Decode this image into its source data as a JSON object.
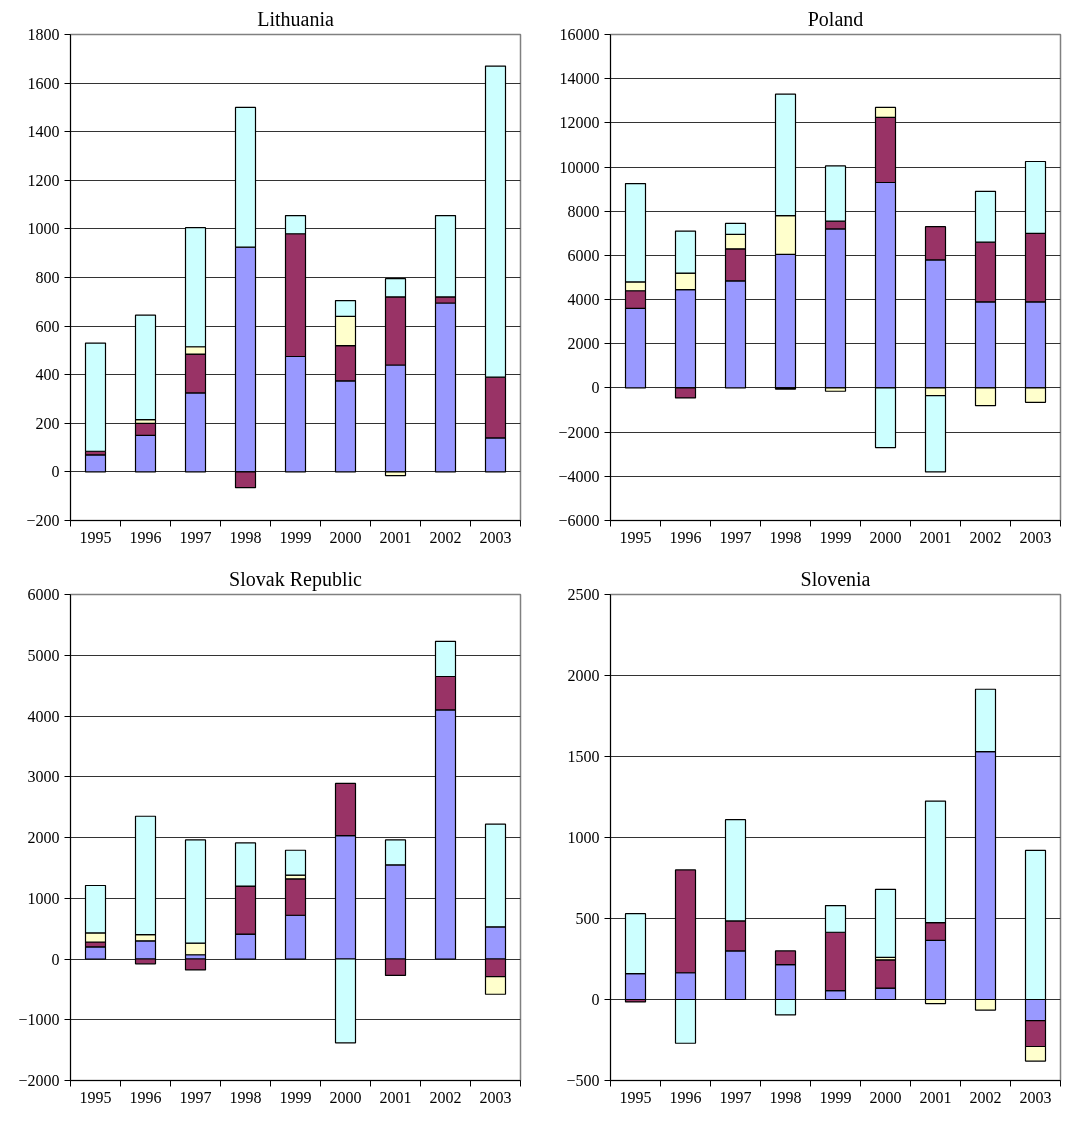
{
  "chart_data": [
    {
      "type": "bar",
      "title": "Lithuania",
      "stacked": true,
      "grid": "y",
      "ylim": [
        -200,
        1800
      ],
      "yticks": [
        -200,
        0,
        200,
        400,
        600,
        800,
        1000,
        1200,
        1400,
        1600,
        1800
      ],
      "categories": [
        "1995",
        "1996",
        "1997",
        "1998",
        "1999",
        "2000",
        "2001",
        "2002",
        "2003"
      ],
      "series": [
        {
          "color": "#9999ff",
          "values": [
            70,
            150,
            325,
            925,
            475,
            375,
            440,
            695,
            140
          ]
        },
        {
          "color": "#993366",
          "values": [
            15,
            50,
            160,
            -65,
            505,
            145,
            280,
            25,
            250
          ]
        },
        {
          "color": "#ffffcc",
          "values": [
            0,
            15,
            30,
            null,
            null,
            120,
            -15,
            0,
            0
          ]
        },
        {
          "color": "#ccffff",
          "values": [
            445,
            430,
            490,
            575,
            75,
            65,
            75,
            335,
            1280
          ]
        }
      ]
    },
    {
      "type": "bar",
      "title": "Poland",
      "stacked": true,
      "grid": "y",
      "ylim": [
        -6000,
        16000
      ],
      "yticks": [
        -6000,
        -4000,
        -2000,
        0,
        2000,
        4000,
        6000,
        8000,
        10000,
        12000,
        14000,
        16000
      ],
      "categories": [
        "1995",
        "1996",
        "1997",
        "1998",
        "1999",
        "2000",
        "2001",
        "2002",
        "2003"
      ],
      "series": [
        {
          "color": "#9999ff",
          "values": [
            3600,
            4450,
            4850,
            6050,
            7200,
            9300,
            5800,
            3900,
            3900
          ]
        },
        {
          "color": "#993366",
          "values": [
            800,
            -450,
            1450,
            -50,
            350,
            2950,
            1500,
            2700,
            3100
          ]
        },
        {
          "color": "#ffffcc",
          "values": [
            400,
            750,
            650,
            1750,
            -150,
            450,
            -350,
            -800,
            -650
          ]
        },
        {
          "color": "#ccffff",
          "values": [
            4450,
            1900,
            500,
            5500,
            2500,
            -2700,
            -3450,
            2300,
            3250
          ]
        }
      ]
    },
    {
      "type": "bar",
      "title": "Slovak Republic",
      "stacked": true,
      "grid": "y",
      "ylim": [
        -2000,
        6000
      ],
      "yticks": [
        -2000,
        -1000,
        0,
        1000,
        2000,
        3000,
        4000,
        5000,
        6000
      ],
      "categories": [
        "1995",
        "1996",
        "1997",
        "1998",
        "1999",
        "2000",
        "2001",
        "2002",
        "2003"
      ],
      "series": [
        {
          "color": "#9999ff",
          "values": [
            200,
            300,
            70,
            410,
            720,
            2030,
            1550,
            4100,
            530
          ]
        },
        {
          "color": "#993366",
          "values": [
            80,
            -80,
            -180,
            790,
            600,
            860,
            -270,
            550,
            -290
          ]
        },
        {
          "color": "#ffffcc",
          "values": [
            150,
            100,
            190,
            0,
            60,
            null,
            0,
            0,
            -290
          ]
        },
        {
          "color": "#ccffff",
          "values": [
            780,
            1950,
            1700,
            710,
            410,
            -1380,
            410,
            580,
            1690
          ]
        }
      ]
    },
    {
      "type": "bar",
      "title": "Slovenia",
      "stacked": true,
      "grid": "y",
      "ylim": [
        -500,
        2500
      ],
      "yticks": [
        -500,
        0,
        500,
        1000,
        1500,
        2000,
        2500
      ],
      "categories": [
        "1995",
        "1996",
        "1997",
        "1998",
        "1999",
        "2000",
        "2001",
        "2002",
        "2003"
      ],
      "series": [
        {
          "color": "#9999ff",
          "values": [
            160,
            165,
            300,
            215,
            55,
            70,
            365,
            1530,
            -130
          ]
        },
        {
          "color": "#993366",
          "values": [
            -15,
            635,
            185,
            85,
            360,
            175,
            110,
            0,
            -160
          ]
        },
        {
          "color": "#ffffcc",
          "values": [
            0,
            0,
            0,
            0,
            0,
            15,
            -25,
            -65,
            -90
          ]
        },
        {
          "color": "#ccffff",
          "values": [
            370,
            -270,
            625,
            -95,
            165,
            420,
            750,
            385,
            920
          ]
        }
      ]
    }
  ]
}
